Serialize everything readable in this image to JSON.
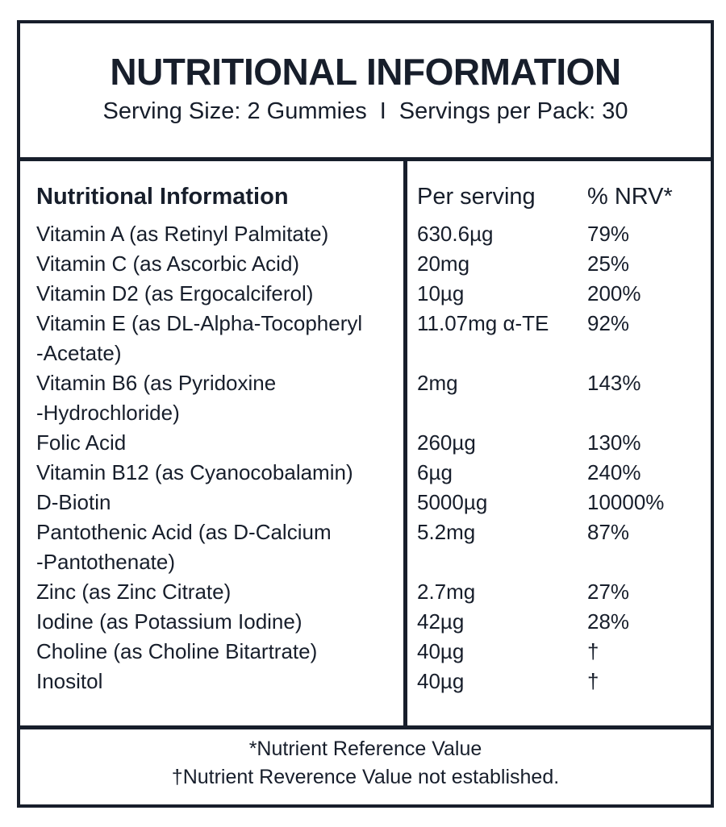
{
  "title": "NUTRITIONAL INFORMATION",
  "serving_line": {
    "serving_size": "Serving Size: 2 Gummies",
    "separator": "I",
    "servings_per_pack": "Servings per Pack: 30"
  },
  "table": {
    "header": {
      "name": "Nutritional Information",
      "per_serving": "Per serving",
      "nrv": "% NRV*"
    },
    "rows": [
      {
        "name": "Vitamin A (as Retinyl Palmitate)",
        "amount": "630.6µg",
        "nrv": "79%"
      },
      {
        "name": "Vitamin C (as Ascorbic Acid)",
        "amount": "20mg",
        "nrv": "25%"
      },
      {
        "name": "Vitamin D2 (as Ergocalciferol)",
        "amount": "10µg",
        "nrv": "200%"
      },
      {
        "name": "Vitamin E (as DL-Alpha-Tocopheryl\n-Acetate)",
        "amount": "11.07mg α-TE",
        "nrv": "92%"
      },
      {
        "name": "Vitamin B6 (as Pyridoxine\n-Hydrochloride)",
        "amount": "2mg",
        "nrv": "143%"
      },
      {
        "name": "Folic Acid",
        "amount": "260µg",
        "nrv": "130%"
      },
      {
        "name": "Vitamin B12 (as Cyanocobalamin)",
        "amount": "6µg",
        "nrv": "240%"
      },
      {
        "name": "D-Biotin",
        "amount": "5000µg",
        "nrv": "10000%"
      },
      {
        "name": "Pantothenic Acid (as D-Calcium\n-Pantothenate)",
        "amount": "5.2mg",
        "nrv": "87%"
      },
      {
        "name": "Zinc (as Zinc Citrate)",
        "amount": "2.7mg",
        "nrv": "27%"
      },
      {
        "name": "Iodine (as Potassium Iodine)",
        "amount": "42µg",
        "nrv": "28%"
      },
      {
        "name": "Choline (as Choline Bitartrate)",
        "amount": "40µg",
        "nrv": "†"
      },
      {
        "name": "Inositol",
        "amount": "40µg",
        "nrv": "†"
      }
    ]
  },
  "footnotes": {
    "line1": "*Nutrient Reference Value",
    "line2": "†Nutrient Reverence Value not established."
  },
  "colors": {
    "ink": "#171e2b",
    "background": "#ffffff"
  }
}
